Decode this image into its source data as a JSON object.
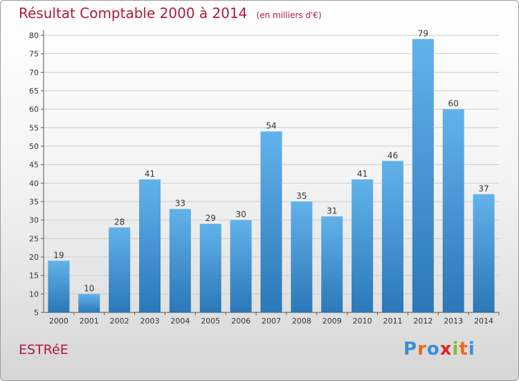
{
  "header": {
    "title": "Résultat Comptable 2000 à 2014",
    "subtitle": "(en milliers d'€)"
  },
  "commune": "ESTRéE",
  "logo": {
    "text": "Proxiti",
    "letters": [
      "P",
      "r",
      "o",
      "x",
      "i",
      "t",
      "i"
    ],
    "colors": [
      "#3a8fd8",
      "#e86a1c",
      "#3a8fd8",
      "#e3212b",
      "#7dbf2e",
      "#e86a1c",
      "#3a8fd8"
    ]
  },
  "colors": {
    "title": "#b0183c",
    "bar_top": "#62b2ea",
    "bar_bottom": "#2a78b8",
    "grid": "#cccccc",
    "axis": "#555555"
  },
  "chart_data": {
    "type": "bar",
    "title": "Résultat Comptable 2000 à 2014",
    "subtitle": "(en milliers d'€)",
    "xlabel": "",
    "ylabel": "",
    "categories": [
      "2000",
      "2001",
      "2002",
      "2003",
      "2004",
      "2005",
      "2006",
      "2007",
      "2008",
      "2009",
      "2010",
      "2011",
      "2012",
      "2013",
      "2014"
    ],
    "values": [
      19,
      10,
      28,
      41,
      33,
      29,
      30,
      54,
      35,
      31,
      41,
      46,
      79,
      60,
      37
    ],
    "ylim": [
      5,
      80
    ],
    "yticks": [
      5,
      10,
      15,
      20,
      25,
      30,
      35,
      40,
      45,
      50,
      55,
      60,
      65,
      70,
      75,
      80
    ],
    "grid": true
  }
}
